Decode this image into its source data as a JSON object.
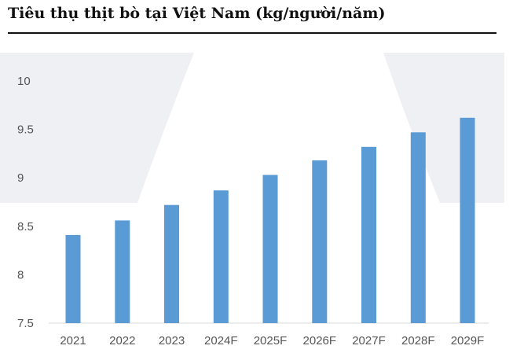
{
  "header": {
    "title": "Tiêu thụ thịt bò tại Việt Nam (kg/người/năm)"
  },
  "colors": {
    "bar": "#5b9bd5",
    "panel_background": "#eef0f4",
    "axis": "#d9d9d9",
    "text": "#555555"
  },
  "chart_data": {
    "type": "bar",
    "title": "Tiêu thụ thịt bò tại Việt Nam (kg/người/năm)",
    "categories": [
      "2021",
      "2022",
      "2023",
      "2024F",
      "2025F",
      "2026F",
      "2027F",
      "2028F",
      "2029F"
    ],
    "values": [
      8.41,
      8.56,
      8.72,
      8.87,
      9.03,
      9.18,
      9.32,
      9.47,
      9.62
    ],
    "yticks": [
      "7.5",
      "8",
      "8.5",
      "9",
      "9.5",
      "10"
    ],
    "ylim": [
      7.5,
      10
    ],
    "grid": false,
    "legend": "none"
  }
}
